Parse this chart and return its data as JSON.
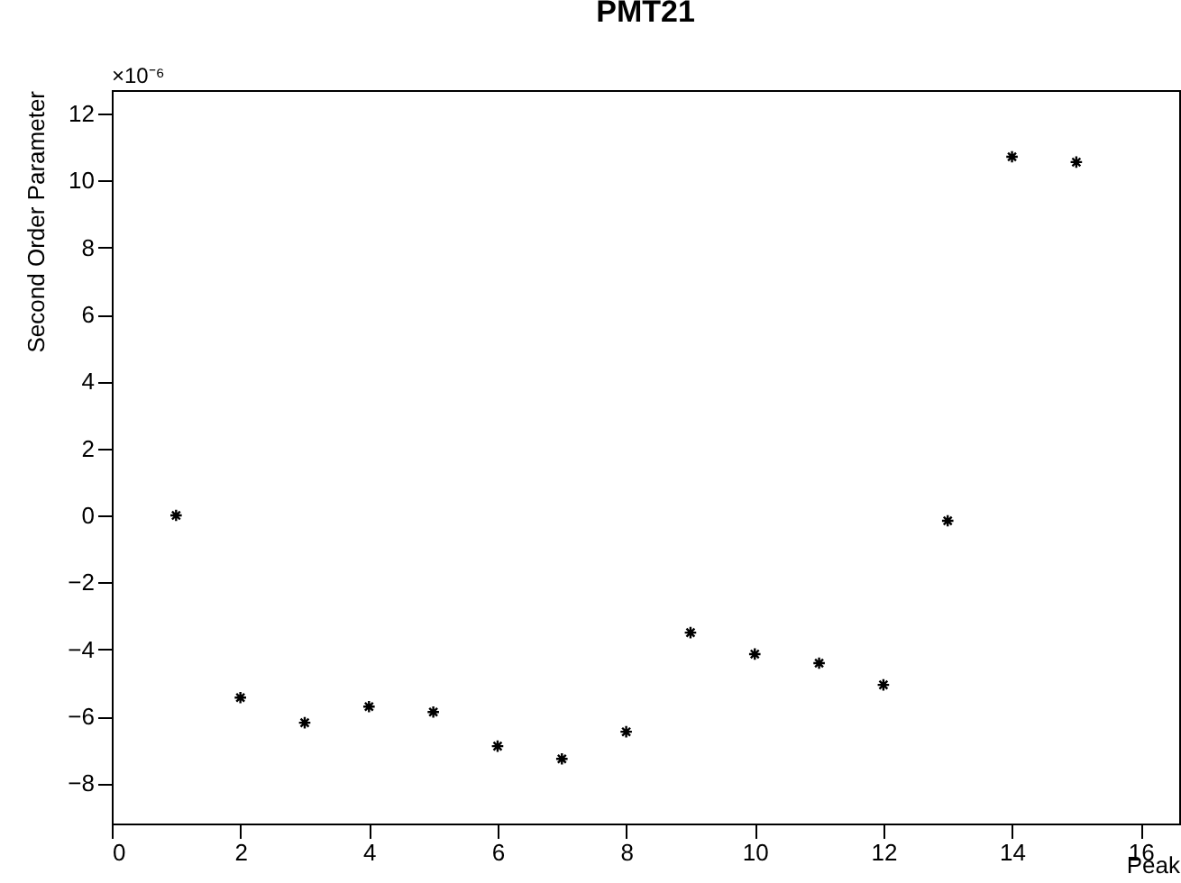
{
  "chart_data": {
    "type": "scatter",
    "title": "PMT21",
    "xlabel": "Peak",
    "ylabel": "Second Order Parameter",
    "annotations": [
      "×10⁻⁶"
    ],
    "x": [
      1,
      2,
      3,
      4,
      5,
      6,
      7,
      8,
      9,
      10,
      11,
      12,
      13,
      14,
      15
    ],
    "series": [
      {
        "color": "#000000",
        "values": [
          0,
          -5.44,
          -6.19,
          -5.71,
          -5.87,
          -6.89,
          -7.27,
          -6.46,
          -3.5,
          -4.14,
          -4.41,
          -5.06,
          -0.16,
          10.71,
          10.55
        ]
      }
    ],
    "xlim": [
      0,
      16.6
    ],
    "xticks": [
      0,
      2,
      4,
      6,
      8,
      10,
      12,
      14,
      16
    ],
    "ylim": [
      -9.2,
      12.7
    ],
    "yticks": [
      -8,
      -6,
      -4,
      -2,
      0,
      2,
      4,
      6,
      8,
      10,
      12
    ],
    "marker": "cross",
    "grid": false,
    "legend": false
  }
}
